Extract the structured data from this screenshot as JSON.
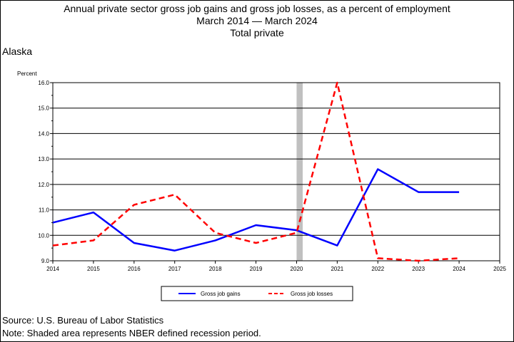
{
  "chart_data": {
    "type": "line",
    "title": [
      "Annual private sector gross job gains and gross job losses, as a percent of employment",
      "March 2014 — March 2024",
      "Total private"
    ],
    "state": "Alaska",
    "ylabel": "Percent",
    "xlabel": "",
    "xlim": [
      2014,
      2025
    ],
    "ylim": [
      9.0,
      16.0
    ],
    "x_ticks": [
      "2014",
      "2015",
      "2016",
      "2017",
      "2018",
      "2019",
      "2020",
      "2021",
      "2022",
      "2023",
      "2024",
      "2025"
    ],
    "y_ticks": [
      "9.0",
      "10.0",
      "11.0",
      "12.0",
      "13.0",
      "14.0",
      "15.0",
      "16.0"
    ],
    "grid": "horizontal",
    "recession_band": [
      2020.0,
      2020.15
    ],
    "legend_position": "bottom-center",
    "series": [
      {
        "name": "Gross job gains",
        "color": "#0000ff",
        "style": "solid",
        "x": [
          2014,
          2015,
          2016,
          2017,
          2018,
          2019,
          2020,
          2021,
          2022,
          2023,
          2024
        ],
        "values": [
          10.5,
          10.9,
          9.7,
          9.4,
          9.8,
          10.4,
          10.2,
          9.6,
          12.6,
          11.7,
          11.7
        ]
      },
      {
        "name": "Gross job losses",
        "color": "#ff0000",
        "style": "dashed",
        "x": [
          2014,
          2015,
          2016,
          2017,
          2018,
          2019,
          2020,
          2021,
          2022,
          2023,
          2024
        ],
        "values": [
          9.6,
          9.8,
          11.2,
          11.6,
          10.1,
          9.7,
          10.1,
          16.0,
          9.1,
          9.0,
          9.1
        ]
      }
    ]
  },
  "footer": {
    "source": "Source: U.S. Bureau of Labor Statistics",
    "note": "Note: Shaded area represents NBER defined recession period."
  }
}
